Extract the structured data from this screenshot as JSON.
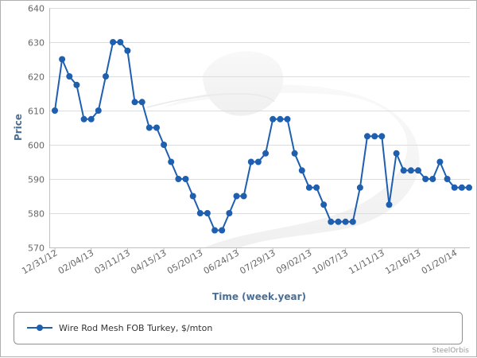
{
  "chart_data": {
    "type": "line",
    "title": "",
    "xlabel": "Time (week.year)",
    "ylabel": "Price",
    "ylim": [
      570,
      640
    ],
    "y_ticks": [
      570,
      580,
      590,
      600,
      610,
      620,
      630,
      640
    ],
    "x_tick_labels": [
      "12/31/12",
      "02/04/13",
      "03/11/13",
      "04/15/13",
      "05/20/13",
      "06/24/13",
      "07/29/13",
      "09/02/13",
      "10/07/13",
      "11/11/13",
      "12/16/13",
      "01/20/14"
    ],
    "grid": true,
    "legend_position": "bottom",
    "credit": "SteelOrbis",
    "colors": {
      "series": "#1f5fb0",
      "grid": "#dddddd",
      "axis": "#c0c0c0",
      "axis_title": "#4c6e93"
    },
    "series": [
      {
        "name": "Wire Rod Mesh FOB Turkey, $/mton",
        "values": [
          610,
          625,
          620,
          617.5,
          607.5,
          607.5,
          610,
          620,
          630,
          630,
          627.5,
          612.5,
          612.5,
          605,
          605,
          600,
          595,
          590,
          590,
          585,
          580,
          580,
          575,
          575,
          580,
          585,
          585,
          595,
          595,
          597.5,
          607.5,
          607.5,
          607.5,
          597.5,
          592.5,
          587.5,
          587.5,
          582.5,
          577.5,
          577.5,
          577.5,
          577.5,
          587.5,
          602.5,
          602.5,
          602.5,
          582.5,
          597.5,
          592.5,
          592.5,
          592.5,
          590,
          590,
          595,
          590,
          587.5,
          587.5,
          587.5
        ]
      }
    ]
  }
}
